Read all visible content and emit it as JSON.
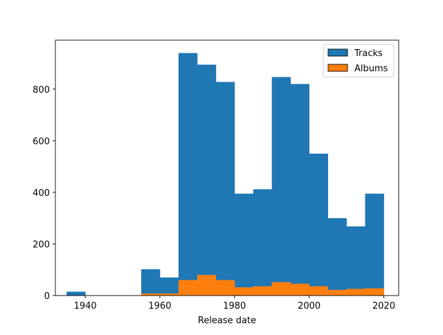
{
  "chart_data": {
    "type": "bar",
    "subtype": "histogram",
    "xlabel": "Release date",
    "ylabel": "",
    "title": "",
    "xlim": [
      1932,
      2024
    ],
    "ylim": [
      0,
      990
    ],
    "x_ticks": [
      1940,
      1960,
      1980,
      2000,
      2020
    ],
    "y_ticks": [
      0,
      200,
      400,
      600,
      800
    ],
    "bin_edges": [
      1935,
      1940,
      1945,
      1950,
      1955,
      1960,
      1965,
      1970,
      1975,
      1980,
      1985,
      1990,
      1995,
      2000,
      2005,
      2010,
      2015,
      2020
    ],
    "legend": {
      "position": "upper right"
    },
    "series": [
      {
        "name": "Tracks",
        "color": "#1f77b4",
        "values": [
          15,
          0,
          0,
          0,
          102,
          70,
          940,
          895,
          828,
          395,
          412,
          847,
          820,
          550,
          300,
          268,
          395
        ]
      },
      {
        "name": "Albums",
        "color": "#ff7f0e",
        "values": [
          0,
          0,
          0,
          0,
          8,
          8,
          60,
          80,
          60,
          32,
          36,
          52,
          46,
          36,
          22,
          26,
          28
        ]
      }
    ]
  }
}
